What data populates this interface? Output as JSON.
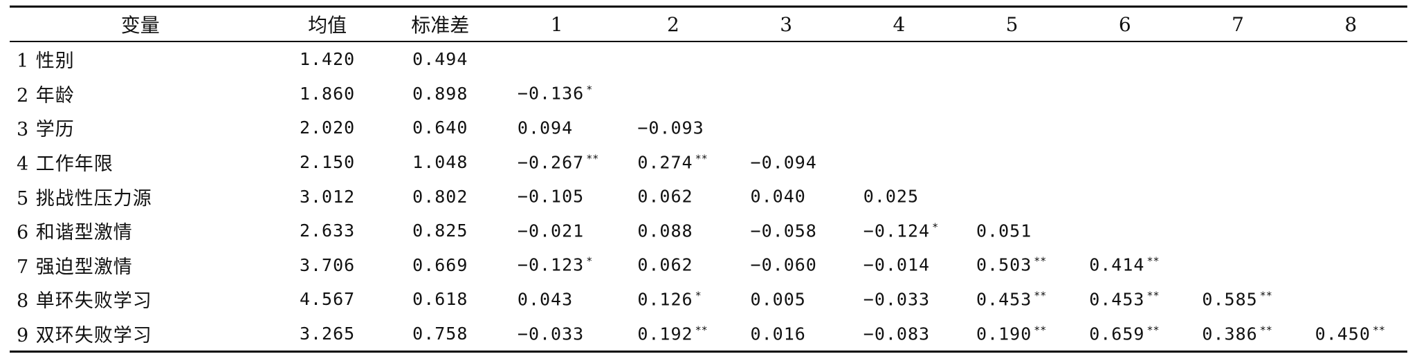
{
  "table": {
    "headers": [
      "变量",
      "均值",
      "标准差",
      "1",
      "2",
      "3",
      "4",
      "5",
      "6",
      "7",
      "8"
    ],
    "rows": [
      {
        "name": "1 性别",
        "mean": "1.420",
        "sd": "0.494",
        "r": []
      },
      {
        "name": "2 年龄",
        "mean": "1.860",
        "sd": "0.898",
        "r": [
          [
            "−0.136",
            "*"
          ]
        ]
      },
      {
        "name": "3 学历",
        "mean": "2.020",
        "sd": "0.640",
        "r": [
          [
            "0.094",
            ""
          ],
          [
            "−0.093",
            ""
          ]
        ]
      },
      {
        "name": "4 工作年限",
        "mean": "2.150",
        "sd": "1.048",
        "r": [
          [
            "−0.267",
            "**"
          ],
          [
            "0.274",
            "**"
          ],
          [
            "−0.094",
            ""
          ]
        ]
      },
      {
        "name": "5 挑战性压力源",
        "mean": "3.012",
        "sd": "0.802",
        "r": [
          [
            "−0.105",
            ""
          ],
          [
            "0.062",
            ""
          ],
          [
            "0.040",
            ""
          ],
          [
            "0.025",
            ""
          ]
        ]
      },
      {
        "name": "6 和谐型激情",
        "mean": "2.633",
        "sd": "0.825",
        "r": [
          [
            "−0.021",
            ""
          ],
          [
            "0.088",
            ""
          ],
          [
            "−0.058",
            ""
          ],
          [
            "−0.124",
            "*"
          ],
          [
            "0.051",
            ""
          ]
        ]
      },
      {
        "name": "7 强迫型激情",
        "mean": "3.706",
        "sd": "0.669",
        "r": [
          [
            "−0.123",
            "*"
          ],
          [
            "0.062",
            ""
          ],
          [
            "−0.060",
            ""
          ],
          [
            "−0.014",
            ""
          ],
          [
            "0.503",
            "**"
          ],
          [
            "0.414",
            "**"
          ]
        ]
      },
      {
        "name": "8 单环失败学习",
        "mean": "4.567",
        "sd": "0.618",
        "r": [
          [
            "0.043",
            ""
          ],
          [
            "0.126",
            "*"
          ],
          [
            "0.005",
            ""
          ],
          [
            "−0.033",
            ""
          ],
          [
            "0.453",
            "**"
          ],
          [
            "0.453",
            "**"
          ],
          [
            "0.585",
            "**"
          ]
        ]
      },
      {
        "name": "9 双环失败学习",
        "mean": "3.265",
        "sd": "0.758",
        "r": [
          [
            "−0.033",
            ""
          ],
          [
            "0.192",
            "**"
          ],
          [
            "0.016",
            ""
          ],
          [
            "−0.083",
            ""
          ],
          [
            "0.190",
            "**"
          ],
          [
            "0.659",
            "**"
          ],
          [
            "0.386",
            "**"
          ],
          [
            "0.450",
            "**"
          ]
        ]
      }
    ]
  }
}
